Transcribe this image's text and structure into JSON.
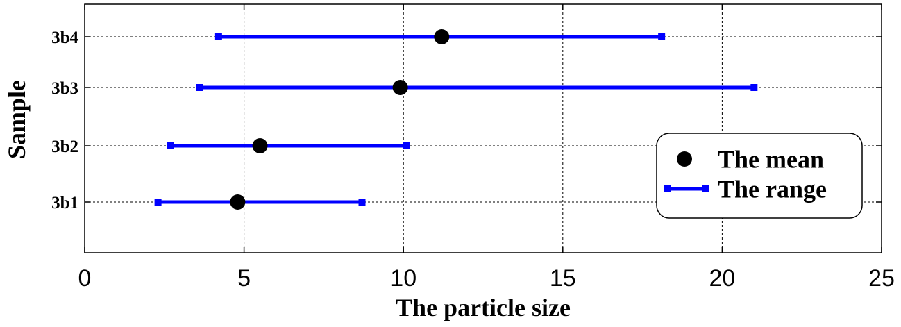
{
  "chart_data": {
    "type": "scatter",
    "xlabel": "The particle size",
    "ylabel": "Sample",
    "xlim": [
      0,
      25
    ],
    "x_ticks": [
      "0",
      "5",
      "10",
      "15",
      "20",
      "25"
    ],
    "categories": [
      "3b1",
      "3b2",
      "3b3",
      "3b4"
    ],
    "grid": true,
    "legend_position": "lower-right",
    "colors": {
      "mean": "#000000",
      "range": "#0000ff"
    },
    "series": [
      {
        "name": "The mean",
        "kind": "points",
        "values": [
          4.8,
          5.5,
          9.9,
          11.2
        ]
      },
      {
        "name": "The range",
        "kind": "intervals",
        "values": [
          [
            2.3,
            8.7
          ],
          [
            2.7,
            10.1
          ],
          [
            3.6,
            21.0
          ],
          [
            4.2,
            18.1
          ]
        ]
      }
    ]
  }
}
